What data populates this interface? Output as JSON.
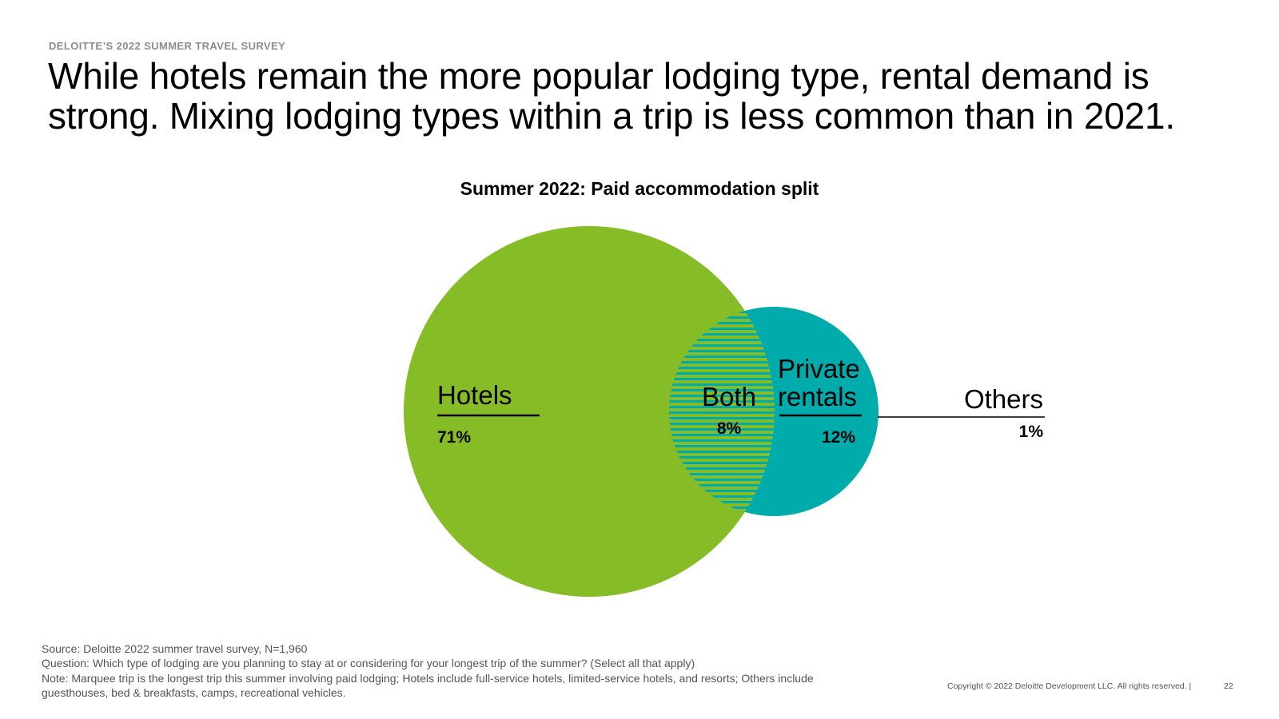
{
  "header": {
    "eyebrow": "DELOITTE’S 2022 SUMMER TRAVEL SURVEY",
    "headline": "While hotels remain the more popular lodging type, rental demand is strong. Mixing lodging types within a trip is less common than in 2021."
  },
  "chart_data": {
    "type": "venn",
    "title": "Summer 2022: Paid accommodation split",
    "sets": [
      {
        "name": "Hotels",
        "value_label": "71%",
        "value": 71,
        "color": "#86bc25"
      },
      {
        "name": "Private rentals",
        "value_label": "12%",
        "value": 12,
        "color": "#00abab"
      }
    ],
    "intersection": {
      "name": "Both",
      "value_label": "8%",
      "value": 8,
      "pattern": "horizontal-stripes"
    },
    "outside": {
      "name": "Others",
      "value_label": "1%",
      "value": 1
    }
  },
  "labels": {
    "hotels": "Hotels",
    "hotels_pct": "71%",
    "both": "Both",
    "both_pct": "8%",
    "rentals_line1": "Private",
    "rentals_line2": "rentals",
    "rentals_pct": "12%",
    "others": "Others",
    "others_pct": "1%"
  },
  "footer": {
    "source": "Source: Deloitte 2022 summer travel survey, N=1,960",
    "question": "Question: Which type of lodging are you planning to stay at or considering for your longest trip of the summer? (Select all that apply)",
    "note_line1": "Note: Marquee trip is the longest trip this summer involving paid lodging; Hotels include full-service hotels, limited-service hotels, and resorts; Others include",
    "note_line2": "guesthouses, bed & breakfasts, camps, recreational vehicles.",
    "copyright": "Copyright © 2022 Deloitte Development LLC. All rights reserved.  |",
    "page_number": "22"
  }
}
